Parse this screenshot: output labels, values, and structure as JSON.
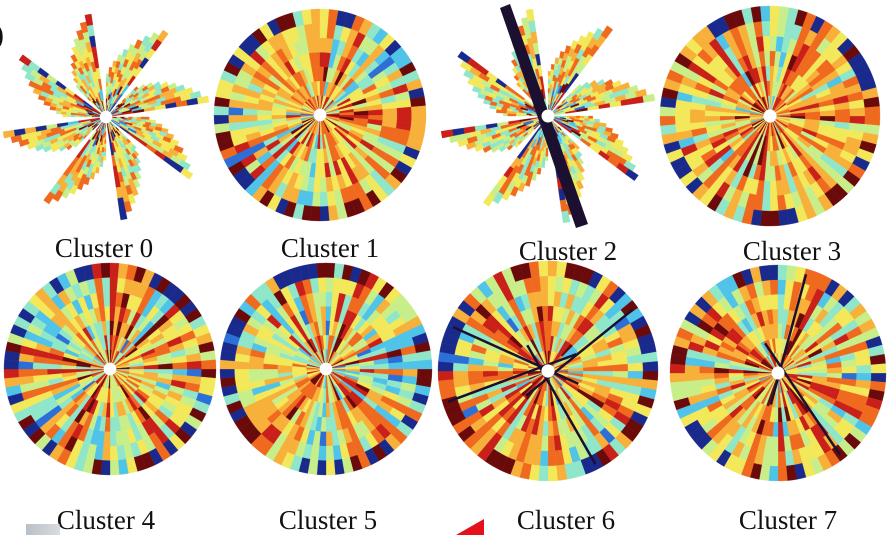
{
  "figure": {
    "panel_label": ")",
    "clusters": [
      {
        "label": "Cluster 0",
        "style": "pinwheel",
        "blades": 8,
        "seed": 11,
        "dark_bar": false
      },
      {
        "label": "Cluster 1",
        "style": "disc",
        "seed": 23,
        "dark_lines": 0
      },
      {
        "label": "Cluster 2",
        "style": "pinwheel",
        "blades": 8,
        "seed": 37,
        "dark_bar": true
      },
      {
        "label": "Cluster 3",
        "style": "disc",
        "seed": 41,
        "dark_lines": 0
      },
      {
        "label": "Cluster 4",
        "style": "disc",
        "seed": 53,
        "dark_lines": 0
      },
      {
        "label": "Cluster 5",
        "style": "disc",
        "seed": 67,
        "dark_lines": 0
      },
      {
        "label": "Cluster 6",
        "style": "disc",
        "seed": 71,
        "dark_lines": 4
      },
      {
        "label": "Cluster 7",
        "style": "disc",
        "seed": 89,
        "dark_lines": 2
      }
    ],
    "colors": {
      "background": "#ffffff",
      "label_text": "#111111",
      "palette": [
        "#1a2a8c",
        "#2c6fd6",
        "#4fc3e8",
        "#8fe6c8",
        "#c8ee8a",
        "#f2e85a",
        "#f7b03a",
        "#ef6a1f",
        "#c9201a",
        "#6b0a0a"
      ],
      "dark_line": "#1c1030",
      "hub": "#ffffff",
      "accent_mark": "#e4101a"
    }
  }
}
